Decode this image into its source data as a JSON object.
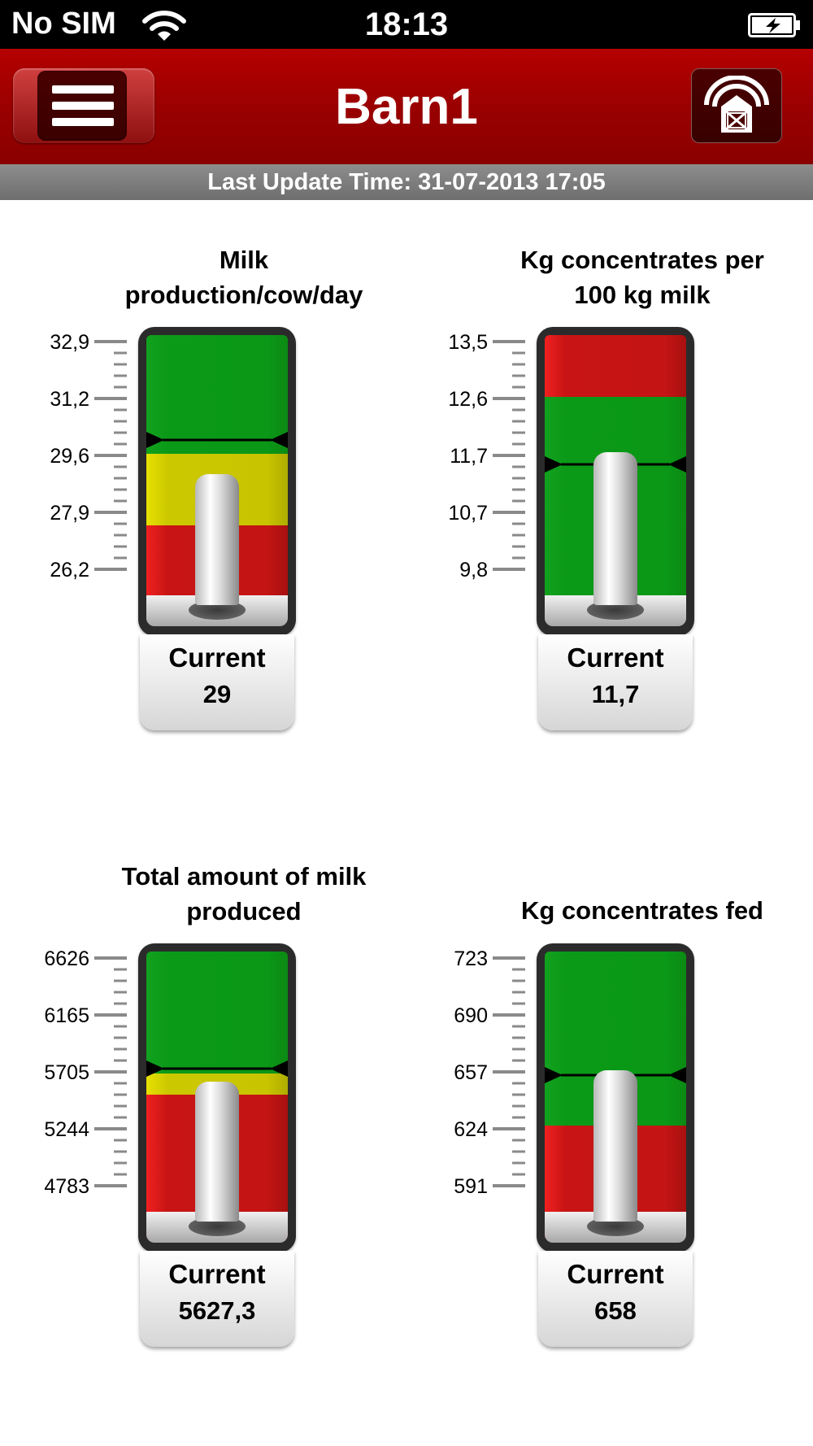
{
  "status_bar": {
    "carrier": "No SIM",
    "time": "18:13",
    "wifi_icon": "wifi-icon",
    "battery_icon": "battery-charging-icon"
  },
  "nav": {
    "title": "Barn1",
    "menu_icon": "hamburger-icon",
    "barn_icon": "barn-icon"
  },
  "update": {
    "text": "Last Update Time: 31-07-2013 17:05"
  },
  "colors": {
    "nav_red": "#9a0000",
    "green": "#0a9816",
    "yellow": "#ccc800",
    "red": "#c41414"
  },
  "gauges": [
    {
      "title_lines": [
        "Milk",
        "production/cow/day"
      ],
      "ticks": [
        "32,9",
        "31,2",
        "29,6",
        "27,9",
        "26,2"
      ],
      "range": [
        26.2,
        32.9
      ],
      "zones": [
        {
          "color": "green",
          "from": 29.6,
          "to": 32.9
        },
        {
          "color": "yellow",
          "from": 27.5,
          "to": 29.6
        },
        {
          "color": "red",
          "from": 26.2,
          "to": 27.5
        }
      ],
      "target": 30.0,
      "current": 29.0,
      "label": "Current",
      "value": "29"
    },
    {
      "title_lines": [
        "Kg concentrates per",
        "100 kg milk"
      ],
      "ticks": [
        "13,5",
        "12,6",
        "11,7",
        "10,7",
        "9,8"
      ],
      "range": [
        9.8,
        13.5
      ],
      "zones": [
        {
          "color": "red",
          "from": 12.6,
          "to": 13.5
        },
        {
          "color": "green",
          "from": 9.8,
          "to": 12.6
        }
      ],
      "target": 11.5,
      "current": 11.7,
      "label": "Current",
      "value": "11,7"
    },
    {
      "title_lines": [
        "Total amount of milk",
        "produced"
      ],
      "ticks": [
        "6626",
        "6165",
        "5705",
        "5244",
        "4783"
      ],
      "range": [
        4783,
        6626
      ],
      "zones": [
        {
          "color": "green",
          "from": 5690,
          "to": 6626
        },
        {
          "color": "yellow",
          "from": 5520,
          "to": 5690
        },
        {
          "color": "red",
          "from": 4783,
          "to": 5520
        }
      ],
      "target": 5730,
      "current": 5627.3,
      "label": "Current",
      "value": "5627,3"
    },
    {
      "title_lines": [
        "Kg concentrates fed"
      ],
      "ticks": [
        "723",
        "690",
        "657",
        "624",
        "591"
      ],
      "range": [
        591,
        723
      ],
      "zones": [
        {
          "color": "green",
          "from": 626,
          "to": 723
        },
        {
          "color": "red",
          "from": 591,
          "to": 626
        }
      ],
      "target": 655,
      "current": 658,
      "label": "Current",
      "value": "658"
    }
  ]
}
